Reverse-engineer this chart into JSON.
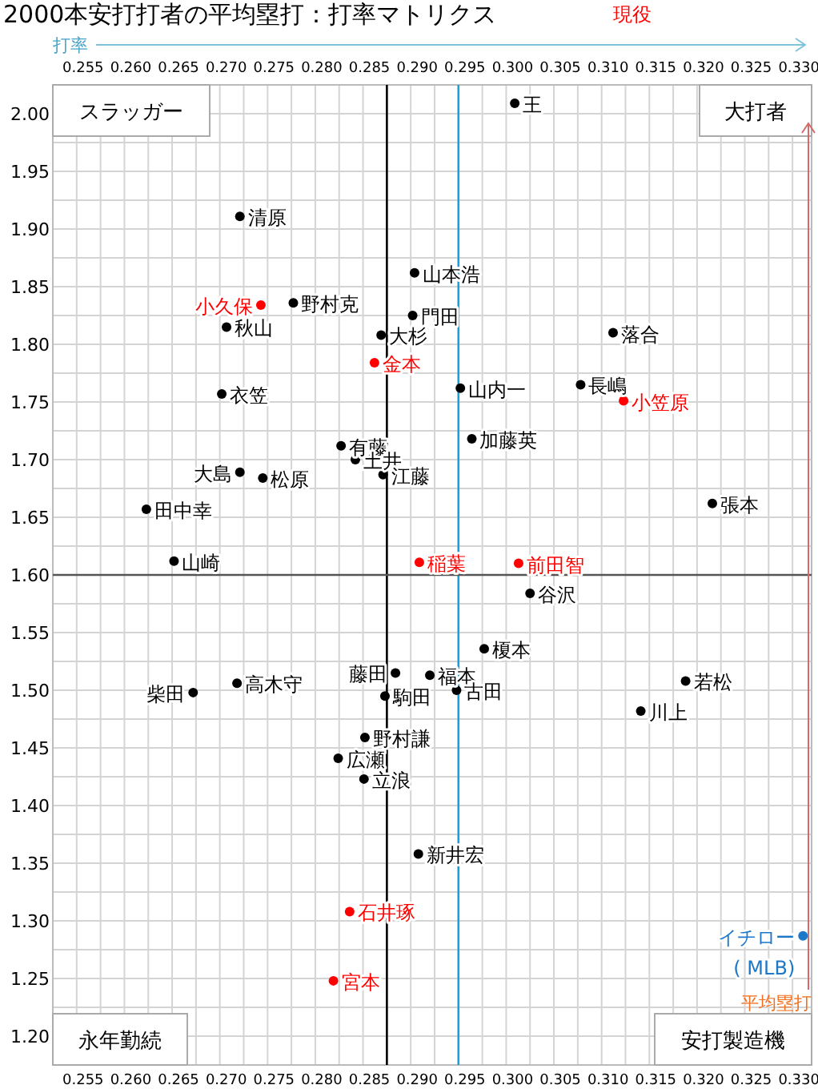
{
  "chart_data": {
    "type": "scatter",
    "title": "2000本安打打者の平均塁打：打率マトリクス",
    "xlabel": "打率",
    "ylabel": "平均塁打",
    "xlim": [
      0.2525,
      0.332
    ],
    "ylim": [
      1.175,
      2.025
    ],
    "xticks": [
      {
        "value": 0.2525,
        "label": null
      },
      {
        "value": 0.255,
        "label": "0.255"
      },
      {
        "value": 0.2575,
        "label": null
      },
      {
        "value": 0.26,
        "label": "0.260"
      },
      {
        "value": 0.2625,
        "label": null
      },
      {
        "value": 0.265,
        "label": "0.265"
      },
      {
        "value": 0.2675,
        "label": null
      },
      {
        "value": 0.27,
        "label": "0.270"
      },
      {
        "value": 0.2725,
        "label": null
      },
      {
        "value": 0.275,
        "label": "0.275"
      },
      {
        "value": 0.2775,
        "label": null
      },
      {
        "value": 0.28,
        "label": "0.280"
      },
      {
        "value": 0.2825,
        "label": null
      },
      {
        "value": 0.285,
        "label": "0.285"
      },
      {
        "value": 0.2875,
        "label": null
      },
      {
        "value": 0.29,
        "label": "0.290"
      },
      {
        "value": 0.2925,
        "label": null
      },
      {
        "value": 0.295,
        "label": "0.295"
      },
      {
        "value": 0.2975,
        "label": null
      },
      {
        "value": 0.3,
        "label": "0.300"
      },
      {
        "value": 0.3025,
        "label": null
      },
      {
        "value": 0.305,
        "label": "0.305"
      },
      {
        "value": 0.3075,
        "label": null
      },
      {
        "value": 0.31,
        "label": "0.310"
      },
      {
        "value": 0.3125,
        "label": null
      },
      {
        "value": 0.315,
        "label": "0.315"
      },
      {
        "value": 0.3175,
        "label": null
      },
      {
        "value": 0.32,
        "label": "0.320"
      },
      {
        "value": 0.3225,
        "label": null
      },
      {
        "value": 0.325,
        "label": "0.325"
      },
      {
        "value": 0.3275,
        "label": null
      },
      {
        "value": 0.33,
        "label": "0.330"
      }
    ],
    "x2lim": [
      0.2525,
      0.332
    ],
    "x2ticks": [
      {
        "value": 0.255,
        "label": "0.255"
      },
      {
        "value": 0.26,
        "label": "0.260"
      },
      {
        "value": 0.265,
        "label": "0.265"
      },
      {
        "value": 0.27,
        "label": "0.270"
      },
      {
        "value": 0.275,
        "label": "0.275"
      },
      {
        "value": 0.28,
        "label": "0.280"
      },
      {
        "value": 0.285,
        "label": "0.285"
      },
      {
        "value": 0.29,
        "label": "0.290"
      },
      {
        "value": 0.295,
        "label": "0.295"
      },
      {
        "value": 0.3,
        "label": "0.300"
      },
      {
        "value": 0.305,
        "label": "0.305"
      },
      {
        "value": 0.31,
        "label": "0.310"
      },
      {
        "value": 0.315,
        "label": "0.315"
      },
      {
        "value": 0.32,
        "label": "0.320"
      },
      {
        "value": 0.325,
        "label": "0.325"
      },
      {
        "value": 0.33,
        "label": "0.330"
      }
    ],
    "yticks": [
      {
        "value": 1.175,
        "label": null
      },
      {
        "value": 1.2,
        "label": "1.20"
      },
      {
        "value": 1.225,
        "label": null
      },
      {
        "value": 1.25,
        "label": "1.25"
      },
      {
        "value": 1.275,
        "label": null
      },
      {
        "value": 1.3,
        "label": "1.30"
      },
      {
        "value": 1.325,
        "label": null
      },
      {
        "value": 1.35,
        "label": "1.35"
      },
      {
        "value": 1.375,
        "label": null
      },
      {
        "value": 1.4,
        "label": "1.40"
      },
      {
        "value": 1.425,
        "label": null
      },
      {
        "value": 1.45,
        "label": "1.45"
      },
      {
        "value": 1.475,
        "label": null
      },
      {
        "value": 1.5,
        "label": "1.50"
      },
      {
        "value": 1.525,
        "label": null
      },
      {
        "value": 1.55,
        "label": "1.55"
      },
      {
        "value": 1.575,
        "label": null
      },
      {
        "value": 1.6,
        "label": "1.60"
      },
      {
        "value": 1.625,
        "label": null
      },
      {
        "value": 1.65,
        "label": "1.65"
      },
      {
        "value": 1.675,
        "label": null
      },
      {
        "value": 1.7,
        "label": "1.70"
      },
      {
        "value": 1.725,
        "label": null
      },
      {
        "value": 1.75,
        "label": "1.75"
      },
      {
        "value": 1.775,
        "label": null
      },
      {
        "value": 1.8,
        "label": "1.80"
      },
      {
        "value": 1.825,
        "label": null
      },
      {
        "value": 1.85,
        "label": "1.85"
      },
      {
        "value": 1.875,
        "label": null
      },
      {
        "value": 1.9,
        "label": "1.90"
      },
      {
        "value": 1.925,
        "label": null
      },
      {
        "value": 1.95,
        "label": "1.95"
      },
      {
        "value": 1.975,
        "label": null
      },
      {
        "value": 2.0,
        "label": "2.00"
      },
      {
        "value": 2.025,
        "label": null
      }
    ],
    "grid": true,
    "marker": "circle",
    "ref_lines": [
      {
        "axis": "x",
        "value": 0.2875,
        "color": "#000000"
      },
      {
        "axis": "x",
        "value": 0.295,
        "color": "#1aa0dc"
      },
      {
        "axis": "y",
        "value": 1.6,
        "color": "#555555"
      }
    ],
    "series": [
      {
        "color": "#000000",
        "x": [
          0.3009,
          0.2721,
          0.2904,
          0.2777,
          0.2902,
          0.2707,
          0.2869,
          0.3112,
          0.2952,
          0.3078,
          0.2702,
          0.2964,
          0.2827,
          0.2842,
          0.2721,
          0.2745,
          0.2871,
          0.2623,
          0.3216,
          0.2652,
          0.3025,
          0.2977,
          0.2884,
          0.292,
          0.3188,
          0.2718,
          0.2672,
          0.2948,
          0.2873,
          0.3141,
          0.2852,
          0.2824,
          0.2851,
          0.2908
        ],
        "values": [
          2.009,
          1.911,
          1.862,
          1.836,
          1.825,
          1.815,
          1.808,
          1.81,
          1.762,
          1.765,
          1.757,
          1.718,
          1.712,
          1.7,
          1.689,
          1.684,
          1.687,
          1.657,
          1.662,
          1.612,
          1.584,
          1.536,
          1.515,
          1.513,
          1.508,
          1.506,
          1.498,
          1.5,
          1.495,
          1.482,
          1.459,
          1.441,
          1.423,
          1.358
        ]
      },
      {
        "name": "現役",
        "color": "#ff0000",
        "x": [
          0.2743,
          0.2862,
          0.3123,
          0.2909,
          0.3013,
          0.2836,
          0.2819
        ],
        "values": [
          1.834,
          1.784,
          1.751,
          1.611,
          1.61,
          1.308,
          1.248
        ]
      },
      {
        "color": "#1e78c8",
        "x": [
          0.3311
        ],
        "values": [
          1.287
        ]
      }
    ],
    "annotations": [
      "スラッガー",
      "大打者",
      "永年勤続",
      "安打製造機",
      {
        "text": "王",
        "x": 0.3009,
        "y": 2.009
      },
      {
        "text": "清原",
        "x": 0.2721,
        "y": 1.911
      },
      {
        "text": "山本浩",
        "x": 0.2904,
        "y": 1.862
      },
      {
        "text": "野村克",
        "x": 0.2777,
        "y": 1.836
      },
      {
        "text": "門田",
        "x": 0.2902,
        "y": 1.825
      },
      {
        "text": "秋山",
        "x": 0.2707,
        "y": 1.815
      },
      {
        "text": "大杉",
        "x": 0.2869,
        "y": 1.808
      },
      {
        "text": "落合",
        "x": 0.3112,
        "y": 1.81
      },
      {
        "text": "山内一",
        "x": 0.2952,
        "y": 1.762
      },
      {
        "text": "長嶋",
        "x": 0.3078,
        "y": 1.765
      },
      {
        "text": "衣笠",
        "x": 0.2702,
        "y": 1.757
      },
      {
        "text": "加藤英",
        "x": 0.2964,
        "y": 1.718
      },
      {
        "text": "有藤",
        "x": 0.2827,
        "y": 1.712
      },
      {
        "text": "土井",
        "x": 0.2842,
        "y": 1.7
      },
      {
        "text": "大島",
        "x": 0.2721,
        "y": 1.689
      },
      {
        "text": "松原",
        "x": 0.2745,
        "y": 1.684
      },
      {
        "text": "江藤",
        "x": 0.2871,
        "y": 1.687
      },
      {
        "text": "田中幸",
        "x": 0.2623,
        "y": 1.657
      },
      {
        "text": "張本",
        "x": 0.3216,
        "y": 1.662
      },
      {
        "text": "山崎",
        "x": 0.2652,
        "y": 1.612
      },
      {
        "text": "谷沢",
        "x": 0.3025,
        "y": 1.584
      },
      {
        "text": "榎本",
        "x": 0.2977,
        "y": 1.536
      },
      {
        "text": "藤田",
        "x": 0.2884,
        "y": 1.515
      },
      {
        "text": "福本",
        "x": 0.292,
        "y": 1.513
      },
      {
        "text": "若松",
        "x": 0.3188,
        "y": 1.508
      },
      {
        "text": "高木守",
        "x": 0.2718,
        "y": 1.506
      },
      {
        "text": "柴田",
        "x": 0.2672,
        "y": 1.498
      },
      {
        "text": "古田",
        "x": 0.2948,
        "y": 1.5
      },
      {
        "text": "駒田",
        "x": 0.2873,
        "y": 1.495
      },
      {
        "text": "川上",
        "x": 0.3141,
        "y": 1.482
      },
      {
        "text": "野村謙",
        "x": 0.2852,
        "y": 1.459
      },
      {
        "text": "広瀬",
        "x": 0.2824,
        "y": 1.441
      },
      {
        "text": "立浪",
        "x": 0.2851,
        "y": 1.423
      },
      {
        "text": "新井宏",
        "x": 0.2908,
        "y": 1.358
      },
      {
        "text": "小久保",
        "x": 0.2743,
        "y": 1.834
      },
      {
        "text": "金本",
        "x": 0.2862,
        "y": 1.784
      },
      {
        "text": "小笠原",
        "x": 0.3123,
        "y": 1.751
      },
      {
        "text": "稲葉",
        "x": 0.2909,
        "y": 1.611
      },
      {
        "text": "前田智",
        "x": 0.3013,
        "y": 1.61
      },
      {
        "text": "石井琢",
        "x": 0.2836,
        "y": 1.308
      },
      {
        "text": "宮本",
        "x": 0.2819,
        "y": 1.248
      },
      {
        "text": "イチロー\n( MLB)",
        "x": 0.3311,
        "y": 1.287
      }
    ]
  }
}
